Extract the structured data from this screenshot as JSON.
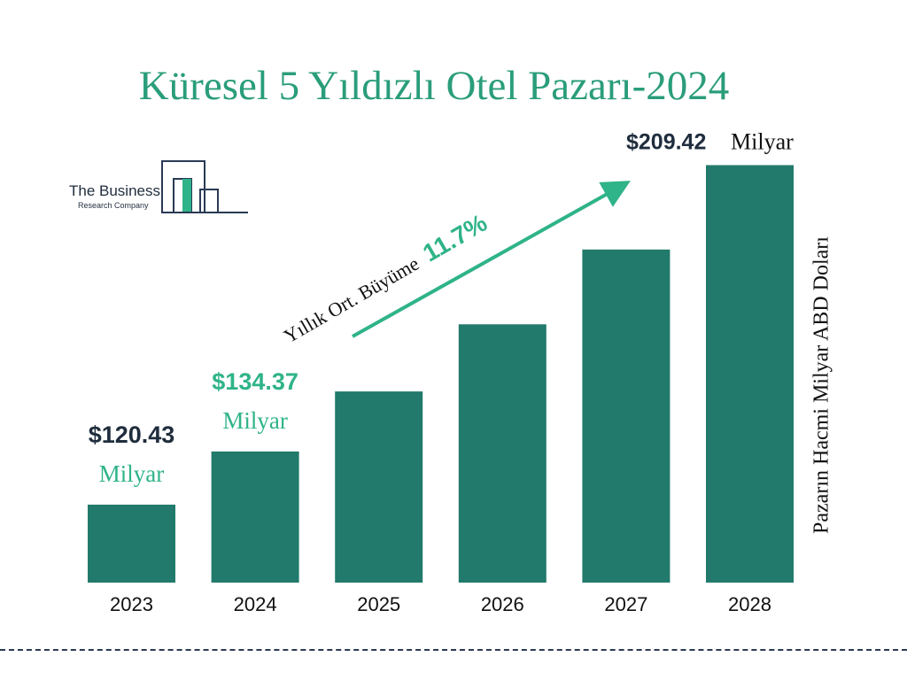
{
  "colors": {
    "bar": "#217a6b",
    "accent": "#2fb389",
    "title": "#2a9d7a",
    "dark": "#1f2d3d"
  },
  "logo": {
    "line1": "The Business",
    "line2": "Research Company"
  },
  "growth": {
    "label": "Yıllık Ort. Büyüme",
    "value": "11.7%"
  },
  "chart_data": {
    "type": "bar",
    "title": "Küresel 5 Yıldızlı Otel Pazarı-2024",
    "ylabel": "Pazarın Hacmi Milyar ABD Doları",
    "xlabel": "",
    "categories": [
      "2023",
      "2024",
      "2025",
      "2026",
      "2027",
      "2028"
    ],
    "values": [
      120.43,
      134.37,
      150.1,
      167.7,
      187.3,
      209.42
    ],
    "ylim": [
      100,
      210
    ],
    "grid": false,
    "annotations": [
      {
        "category": "2023",
        "value_text": "$120.43",
        "unit": "Milyar"
      },
      {
        "category": "2024",
        "value_text": "$134.37",
        "unit": "Milyar"
      },
      {
        "category": "2028",
        "value_text": "$209.42",
        "unit": "Milyar"
      }
    ]
  }
}
